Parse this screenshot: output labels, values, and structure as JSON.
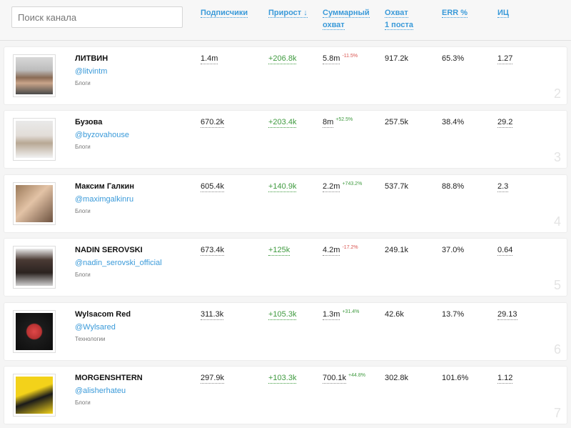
{
  "search": {
    "placeholder": "Поиск канала"
  },
  "columns": {
    "subscribers": "Подписчики",
    "growth": "Прирост ↓",
    "reach_total_line1": "Суммарный",
    "reach_total_line2": "охват",
    "reach_post_line1": "Охват",
    "reach_post_line2": "1 поста",
    "err": "ERR %",
    "ic": "ИЦ"
  },
  "colors": {
    "accent": "#3a9ad9",
    "positive": "#3f9a3f",
    "negative": "#d9534f"
  },
  "rows": [
    {
      "name": "ЛИТВИН",
      "handle": "@litvintm",
      "category": "Блоги",
      "subscribers": "1.4m",
      "growth": "+206.8k",
      "reach": "5.8m",
      "reach_delta": "-11.5%",
      "reach_post": "917.2k",
      "err": "65.3%",
      "ic": "1.27",
      "rank": "2"
    },
    {
      "name": "Бузова",
      "handle": "@byzovahouse",
      "category": "Блоги",
      "subscribers": "670.2k",
      "growth": "+203.4k",
      "reach": "8m",
      "reach_delta": "+52.5%",
      "reach_post": "257.5k",
      "err": "38.4%",
      "ic": "29.2",
      "rank": "3"
    },
    {
      "name": "Максим Галкин",
      "handle": "@maximgalkinru",
      "category": "Блоги",
      "subscribers": "605.4k",
      "growth": "+140.9k",
      "reach": "2.2m",
      "reach_delta": "+743.2%",
      "reach_post": "537.7k",
      "err": "88.8%",
      "ic": "2.3",
      "rank": "4"
    },
    {
      "name": "NADIN SEROVSKI",
      "handle": "@nadin_serovski_official",
      "category": "Блоги",
      "subscribers": "673.4k",
      "growth": "+125k",
      "reach": "4.2m",
      "reach_delta": "-17.2%",
      "reach_post": "249.1k",
      "err": "37.0%",
      "ic": "0.64",
      "rank": "5"
    },
    {
      "name": "Wylsacom Red",
      "handle": "@Wylsared",
      "category": "Технологии",
      "subscribers": "311.3k",
      "growth": "+105.3k",
      "reach": "1.3m",
      "reach_delta": "+31.4%",
      "reach_post": "42.6k",
      "err": "13.7%",
      "ic": "29.13",
      "rank": "6"
    },
    {
      "name": "MORGENSHTERN",
      "handle": "@alisherhateu",
      "category": "Блоги",
      "subscribers": "297.9k",
      "growth": "+103.3k",
      "reach": "700.1k",
      "reach_delta": "+44.8%",
      "reach_post": "302.8k",
      "err": "101.6%",
      "ic": "1.12",
      "rank": "7"
    }
  ]
}
